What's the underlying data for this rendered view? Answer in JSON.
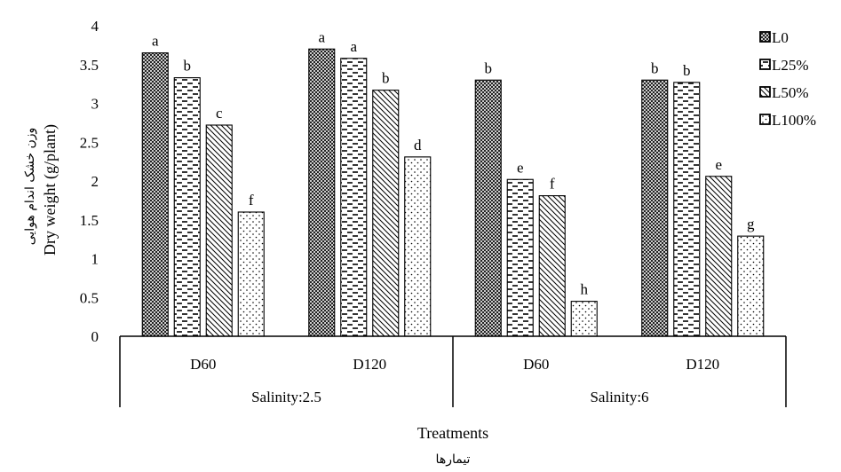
{
  "chart_data": {
    "type": "bar",
    "title": "",
    "xlabel": "Treatments",
    "xlabel_fa": "تیمارها",
    "ylabel": "Dry weight  (g/plant)",
    "ylabel_fa": "وزن خشک اندام هوایی",
    "ylim": [
      0,
      4
    ],
    "yticks": [
      "0",
      "0.5",
      "1",
      "1.5",
      "2",
      "2.5",
      "3",
      "3.5",
      "4"
    ],
    "grid": false,
    "legend_position": "right",
    "groups": [
      {
        "label": "Salinity:2.5",
        "categories": [
          "D60",
          "D120"
        ]
      },
      {
        "label": "Salinity:6",
        "categories": [
          "D60",
          "D120"
        ]
      }
    ],
    "categories": [
      "D60",
      "D120",
      "D60",
      "D120"
    ],
    "series": [
      {
        "name": "L0",
        "pattern": "crosshatch",
        "values": [
          3.65,
          3.7,
          3.3,
          3.3
        ],
        "letters": [
          "a",
          "a",
          "b",
          "b"
        ]
      },
      {
        "name": "L25%",
        "pattern": "dashes",
        "values": [
          3.33,
          3.58,
          2.02,
          3.27
        ],
        "letters": [
          "b",
          "a",
          "e",
          "b"
        ]
      },
      {
        "name": "L50%",
        "pattern": "diagonal",
        "values": [
          2.72,
          3.17,
          1.81,
          2.06
        ],
        "letters": [
          "c",
          "b",
          "f",
          "e"
        ]
      },
      {
        "name": "L100%",
        "pattern": "dots",
        "values": [
          1.6,
          2.31,
          0.45,
          1.29
        ],
        "letters": [
          "f",
          "d",
          "h",
          "g"
        ]
      }
    ]
  }
}
